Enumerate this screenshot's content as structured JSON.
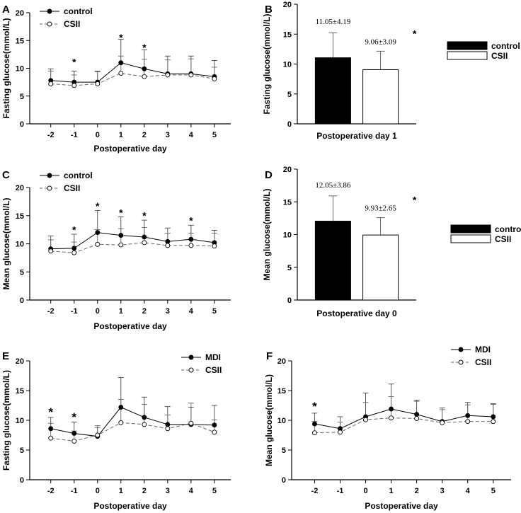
{
  "chart_data": [
    {
      "id": "A",
      "type": "line",
      "panel_label": "A",
      "xlabel": "Postoperative day",
      "ylabel": "Fasting glucose(mmol/L)",
      "categories": [
        "-2",
        "-1",
        "0",
        "1",
        "2",
        "3",
        "4",
        "5"
      ],
      "ylim": [
        0,
        20
      ],
      "yticks": [
        0,
        5,
        10,
        15,
        20
      ],
      "series": [
        {
          "name": "control",
          "marker": "filled",
          "dash": false,
          "values": [
            7.8,
            7.5,
            7.5,
            11.0,
            9.9,
            9.0,
            9.0,
            8.5
          ],
          "err": [
            2.1,
            2.0,
            1.9,
            4.2,
            3.4,
            3.2,
            3.2,
            2.9
          ]
        },
        {
          "name": "CSII",
          "marker": "open",
          "dash": true,
          "values": [
            7.2,
            6.9,
            7.2,
            9.1,
            8.5,
            8.8,
            8.8,
            8.1
          ],
          "err": [
            2.3,
            1.9,
            2.3,
            3.1,
            3.1,
            2.7,
            2.9,
            2.1
          ]
        }
      ],
      "stars": [
        {
          "index": 1,
          "value": 11.3,
          "text": "*"
        },
        {
          "index": 3,
          "value": 15.7,
          "text": "*"
        },
        {
          "index": 4,
          "value": 13.9,
          "text": "*"
        }
      ],
      "legend": {
        "position": "top-left"
      }
    },
    {
      "id": "B",
      "type": "bar",
      "panel_label": "B",
      "xlabel": "Postoperative day 1",
      "ylabel": "Fasting glucose(mmol/L)",
      "categories": [
        "control",
        "CSII"
      ],
      "values": [
        11.05,
        9.06
      ],
      "err": [
        4.19,
        3.09
      ],
      "colors": [
        "#000000",
        "#ffffff"
      ],
      "annotations": [
        "11.05±4.19",
        "9.06±3.09"
      ],
      "star": "*",
      "ylim": [
        0,
        20
      ],
      "yticks": [
        0,
        5,
        10,
        15,
        20
      ],
      "legend": {
        "position": "right",
        "entries": [
          "control",
          "CSII"
        ]
      }
    },
    {
      "id": "C",
      "type": "line",
      "panel_label": "C",
      "xlabel": "Postoperative day",
      "ylabel": "Mean glucose(mmol/L)",
      "categories": [
        "-2",
        "-1",
        "0",
        "1",
        "2",
        "3",
        "4",
        "5"
      ],
      "ylim": [
        0,
        20
      ],
      "yticks": [
        0,
        5,
        10,
        15,
        20
      ],
      "series": [
        {
          "name": "control",
          "marker": "filled",
          "dash": false,
          "values": [
            9.1,
            9.2,
            12.0,
            11.5,
            11.2,
            10.4,
            10.8,
            10.2
          ],
          "err": [
            2.3,
            2.5,
            3.9,
            3.3,
            3.0,
            2.4,
            2.5,
            2.2
          ]
        },
        {
          "name": "CSII",
          "marker": "open",
          "dash": true,
          "values": [
            8.7,
            8.4,
            9.9,
            9.8,
            10.2,
            9.7,
            9.7,
            9.6
          ],
          "err": [
            2.0,
            1.9,
            2.6,
            2.9,
            2.7,
            2.2,
            2.2,
            2.3
          ]
        }
      ],
      "stars": [
        {
          "index": 1,
          "value": 12.7,
          "text": "*"
        },
        {
          "index": 2,
          "value": 16.9,
          "text": "*"
        },
        {
          "index": 3,
          "value": 15.7,
          "text": "*"
        },
        {
          "index": 4,
          "value": 15.2,
          "text": "*"
        },
        {
          "index": 6,
          "value": 14.3,
          "text": "*"
        }
      ],
      "legend": {
        "position": "top-left"
      }
    },
    {
      "id": "D",
      "type": "bar",
      "panel_label": "D",
      "xlabel": "Postoperative day 0",
      "ylabel": "Mean glucose(mmol/L)",
      "categories": [
        "control",
        "CSII"
      ],
      "values": [
        12.05,
        9.93
      ],
      "err": [
        3.86,
        2.65
      ],
      "colors": [
        "#000000",
        "#ffffff"
      ],
      "annotations": [
        "12.05±3.86",
        "9.93±2.65"
      ],
      "star": "*",
      "ylim": [
        0,
        20
      ],
      "yticks": [
        0,
        5,
        10,
        15,
        20
      ],
      "legend": {
        "position": "right",
        "entries": [
          "control",
          "CSII"
        ]
      }
    },
    {
      "id": "E",
      "type": "line",
      "panel_label": "E",
      "xlabel": "Postoperative day",
      "ylabel": "Fasting glucose(mmol/L)",
      "categories": [
        "-2",
        "-1",
        "0",
        "1",
        "2",
        "3",
        "4",
        "5"
      ],
      "ylim": [
        0,
        20
      ],
      "yticks": [
        0,
        5,
        10,
        15,
        20
      ],
      "series": [
        {
          "name": "MDI",
          "marker": "filled",
          "dash": false,
          "values": [
            8.6,
            7.8,
            7.3,
            12.2,
            10.5,
            9.3,
            9.3,
            9.2
          ],
          "err": [
            1.9,
            1.9,
            1.5,
            5.0,
            3.4,
            3.0,
            2.9,
            3.3
          ]
        },
        {
          "name": "CSII",
          "marker": "open",
          "dash": true,
          "values": [
            7.0,
            6.5,
            7.5,
            9.6,
            9.3,
            8.6,
            9.5,
            8.0
          ],
          "err": [
            2.5,
            1.7,
            1.6,
            3.9,
            3.4,
            2.3,
            3.4,
            2.1
          ]
        }
      ],
      "stars": [
        {
          "index": 0,
          "value": 11.6,
          "text": "*"
        },
        {
          "index": 1,
          "value": 10.8,
          "text": "*"
        }
      ],
      "legend": {
        "position": "top-right"
      }
    },
    {
      "id": "F",
      "type": "line",
      "panel_label": "F",
      "xlabel": "Postoperative day",
      "ylabel": "Mean glucose(mmol/L)",
      "categories": [
        "-2",
        "-1",
        "0",
        "1",
        "2",
        "3",
        "4",
        "5"
      ],
      "ylim": [
        0,
        20
      ],
      "yticks": [
        0,
        5,
        10,
        15,
        20
      ],
      "series": [
        {
          "name": "MDI",
          "marker": "filled",
          "dash": false,
          "values": [
            9.4,
            8.6,
            10.6,
            11.9,
            11.0,
            9.8,
            10.8,
            10.6
          ],
          "err": [
            1.8,
            2.0,
            4.0,
            4.2,
            2.4,
            2.3,
            2.2,
            2.2
          ]
        },
        {
          "name": "CSII",
          "marker": "open",
          "dash": true,
          "values": [
            7.9,
            8.0,
            10.1,
            10.4,
            10.3,
            9.6,
            9.8,
            9.8
          ],
          "err": [
            1.9,
            1.7,
            2.9,
            3.6,
            2.9,
            2.2,
            2.8,
            2.9
          ]
        }
      ],
      "stars": [
        {
          "index": 0,
          "value": 12.6,
          "text": "*"
        }
      ],
      "legend": {
        "position": "top-right"
      }
    }
  ]
}
